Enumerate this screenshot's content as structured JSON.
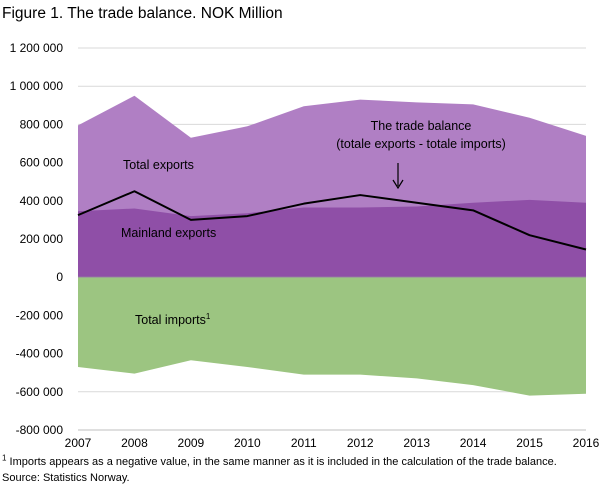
{
  "title": "Figure 1. The trade balance. NOK Million",
  "footnote": {
    "mark": "1",
    "text": " Imports appears as a negative value, in the same manner as it is  included in the calculation of the trade balance."
  },
  "source": "Source: Statistics Norway.",
  "chart_data": {
    "type": "area",
    "x": [
      "2007",
      "2008",
      "2009",
      "2010",
      "2011",
      "2012",
      "2013",
      "2014",
      "2015",
      "2016"
    ],
    "ylim": [
      -800000,
      1200000
    ],
    "y_ticks": [
      1200000,
      1000000,
      800000,
      600000,
      400000,
      200000,
      0,
      -200000,
      -400000,
      -600000,
      -800000
    ],
    "y_tick_labels": [
      "1 200 000",
      "1 000 000",
      "800 000",
      "600 000",
      "400 000",
      "200 000",
      "0",
      "-200 000",
      "-400 000",
      "-600 000",
      "-800 000"
    ],
    "grid": true,
    "series": [
      {
        "name": "Total exports",
        "kind": "area",
        "color": "#b07fc4",
        "values": [
          795000,
          950000,
          730000,
          790000,
          895000,
          930000,
          915000,
          905000,
          835000,
          740000
        ]
      },
      {
        "name": "Mainland exports",
        "kind": "area",
        "color": "#8f4fa7",
        "values": [
          345000,
          360000,
          320000,
          335000,
          365000,
          365000,
          370000,
          390000,
          405000,
          390000
        ]
      },
      {
        "name": "Total imports",
        "name_sup": "1",
        "kind": "area",
        "color": "#9cc581",
        "values": [
          -470000,
          -505000,
          -435000,
          -470000,
          -510000,
          -510000,
          -530000,
          -565000,
          -620000,
          -610000
        ]
      },
      {
        "name": "The trade balance",
        "name_line2": "(totale exports - totale imports)",
        "kind": "line",
        "color": "#000000",
        "values": [
          325000,
          450000,
          300000,
          320000,
          385000,
          430000,
          390000,
          350000,
          220000,
          145000
        ]
      }
    ]
  }
}
